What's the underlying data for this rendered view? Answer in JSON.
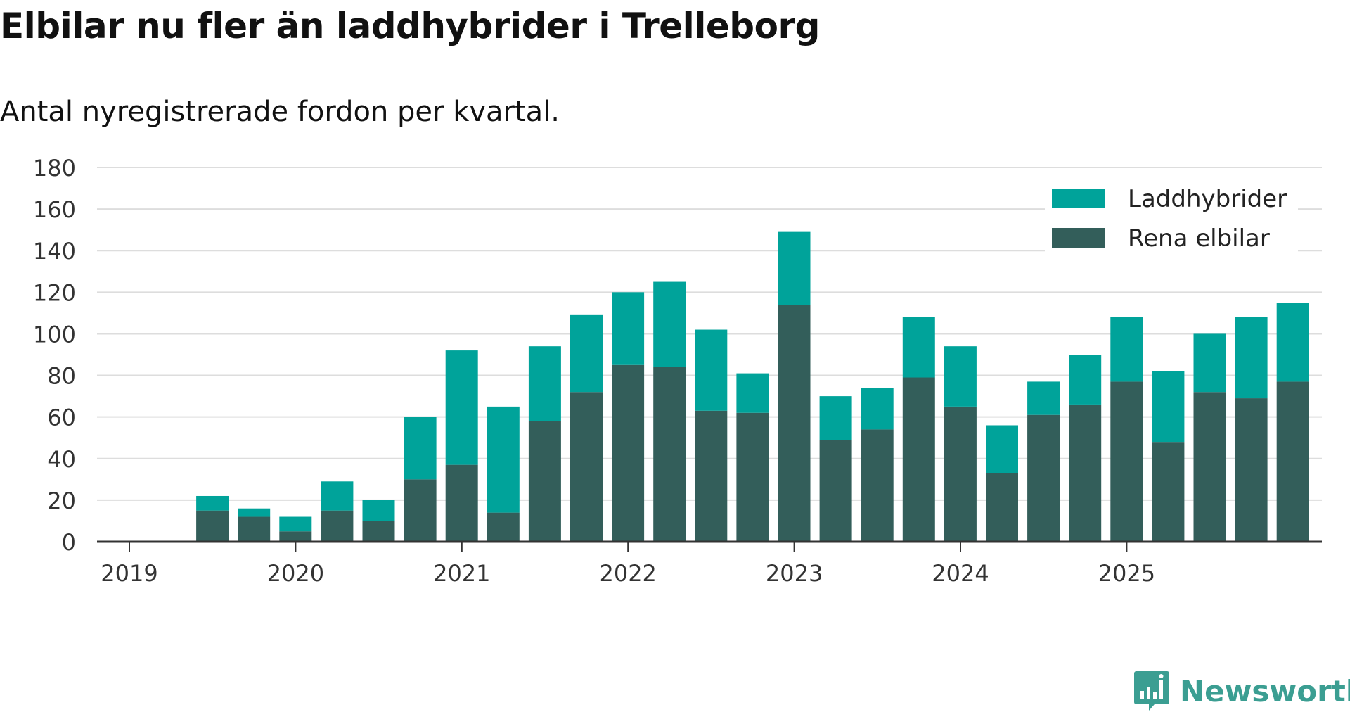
{
  "title": "Elbilar nu fler än laddhybrider i Trelleborg",
  "subtitle": "Antal nyregistrerade fordon per kvartal.",
  "brand": {
    "name": "Newsworthy",
    "logo_icon": "newsworthy-logo-icon",
    "color": "#3b9e92"
  },
  "chart_data": {
    "type": "bar",
    "stacked": true,
    "categories": [
      "2019 Q1",
      "2019 Q2",
      "2019 Q3",
      "2019 Q4",
      "2020 Q1",
      "2020 Q2",
      "2020 Q3",
      "2020 Q4",
      "2021 Q1",
      "2021 Q2",
      "2021 Q3",
      "2021 Q4",
      "2022 Q1",
      "2022 Q2",
      "2022 Q3",
      "2022 Q4",
      "2023 Q1",
      "2023 Q2",
      "2023 Q3",
      "2023 Q4",
      "2024 Q1",
      "2024 Q2",
      "2024 Q3",
      "2024 Q4",
      "2025 Q1",
      "2025 Q2",
      "2025 Q3",
      "2025 Q4"
    ],
    "x_tick_labels": [
      "2019",
      "2020",
      "2021",
      "2022",
      "2023",
      "2024",
      "2025"
    ],
    "y_ticks": [
      0,
      20,
      40,
      60,
      80,
      100,
      120,
      140,
      160,
      180
    ],
    "ylim": [
      0,
      180
    ],
    "grid": true,
    "legend_position": "top-right",
    "series": [
      {
        "name": "Rena elbilar",
        "color": "#335e5a",
        "values": [
          0,
          15,
          12,
          5,
          15,
          10,
          30,
          37,
          14,
          58,
          72,
          85,
          84,
          63,
          62,
          114,
          49,
          54,
          79,
          65,
          33,
          61,
          66,
          77,
          48,
          72,
          69,
          77
        ]
      },
      {
        "name": "Laddhybrider",
        "color": "#00a39a",
        "values": [
          0,
          7,
          4,
          7,
          14,
          10,
          30,
          55,
          51,
          36,
          37,
          35,
          41,
          39,
          19,
          35,
          21,
          20,
          29,
          29,
          23,
          16,
          24,
          31,
          34,
          28,
          39,
          38
        ]
      }
    ],
    "legend_order": [
      "Laddhybrider",
      "Rena elbilar"
    ],
    "xlabel": "",
    "ylabel": ""
  }
}
